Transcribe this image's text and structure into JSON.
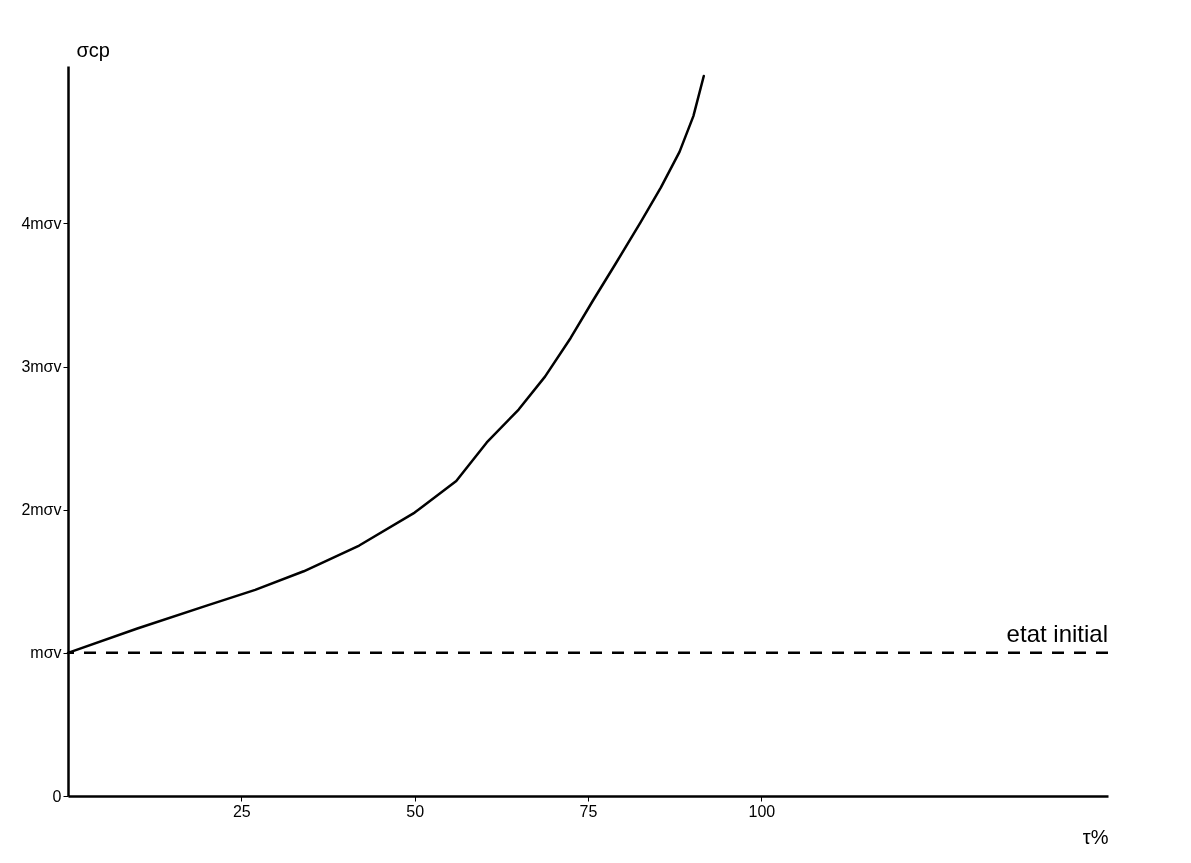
{
  "chart_data": {
    "type": "line",
    "xlabel": "τ%",
    "ylabel": "σcp",
    "x": [
      0,
      10,
      20,
      27,
      34,
      42,
      50,
      56,
      60.4,
      65,
      68.8,
      72.5,
      75.7,
      79,
      82.6,
      85.5,
      88.2,
      90.2,
      91.7
    ],
    "series": [
      {
        "color": "#000000",
        "values": [
          1,
          1.17,
          1.33,
          1.44,
          1.57,
          1.75,
          1.98,
          2.2,
          2.47,
          2.7,
          2.93,
          3.2,
          3.46,
          3.72,
          4.01,
          4.25,
          4.5,
          4.75,
          5.03
        ]
      }
    ],
    "xlim": [
      0,
      150
    ],
    "ylim": [
      0,
      5.1
    ],
    "xticks": [
      25,
      50,
      75,
      100
    ],
    "yticks": [
      0,
      {
        "value": 1,
        "label": "mσv"
      },
      {
        "value": 2,
        "label": "2mσv"
      },
      {
        "value": 3,
        "label": "3mσv"
      },
      {
        "value": 4,
        "label": "4mσv"
      }
    ],
    "grid": false,
    "line_style": "solid",
    "marker": "none",
    "ref_lines": [
      {
        "axis": "y",
        "value": 1,
        "label": "etat initial",
        "line_style": "dashed",
        "color": "#000000"
      }
    ]
  }
}
